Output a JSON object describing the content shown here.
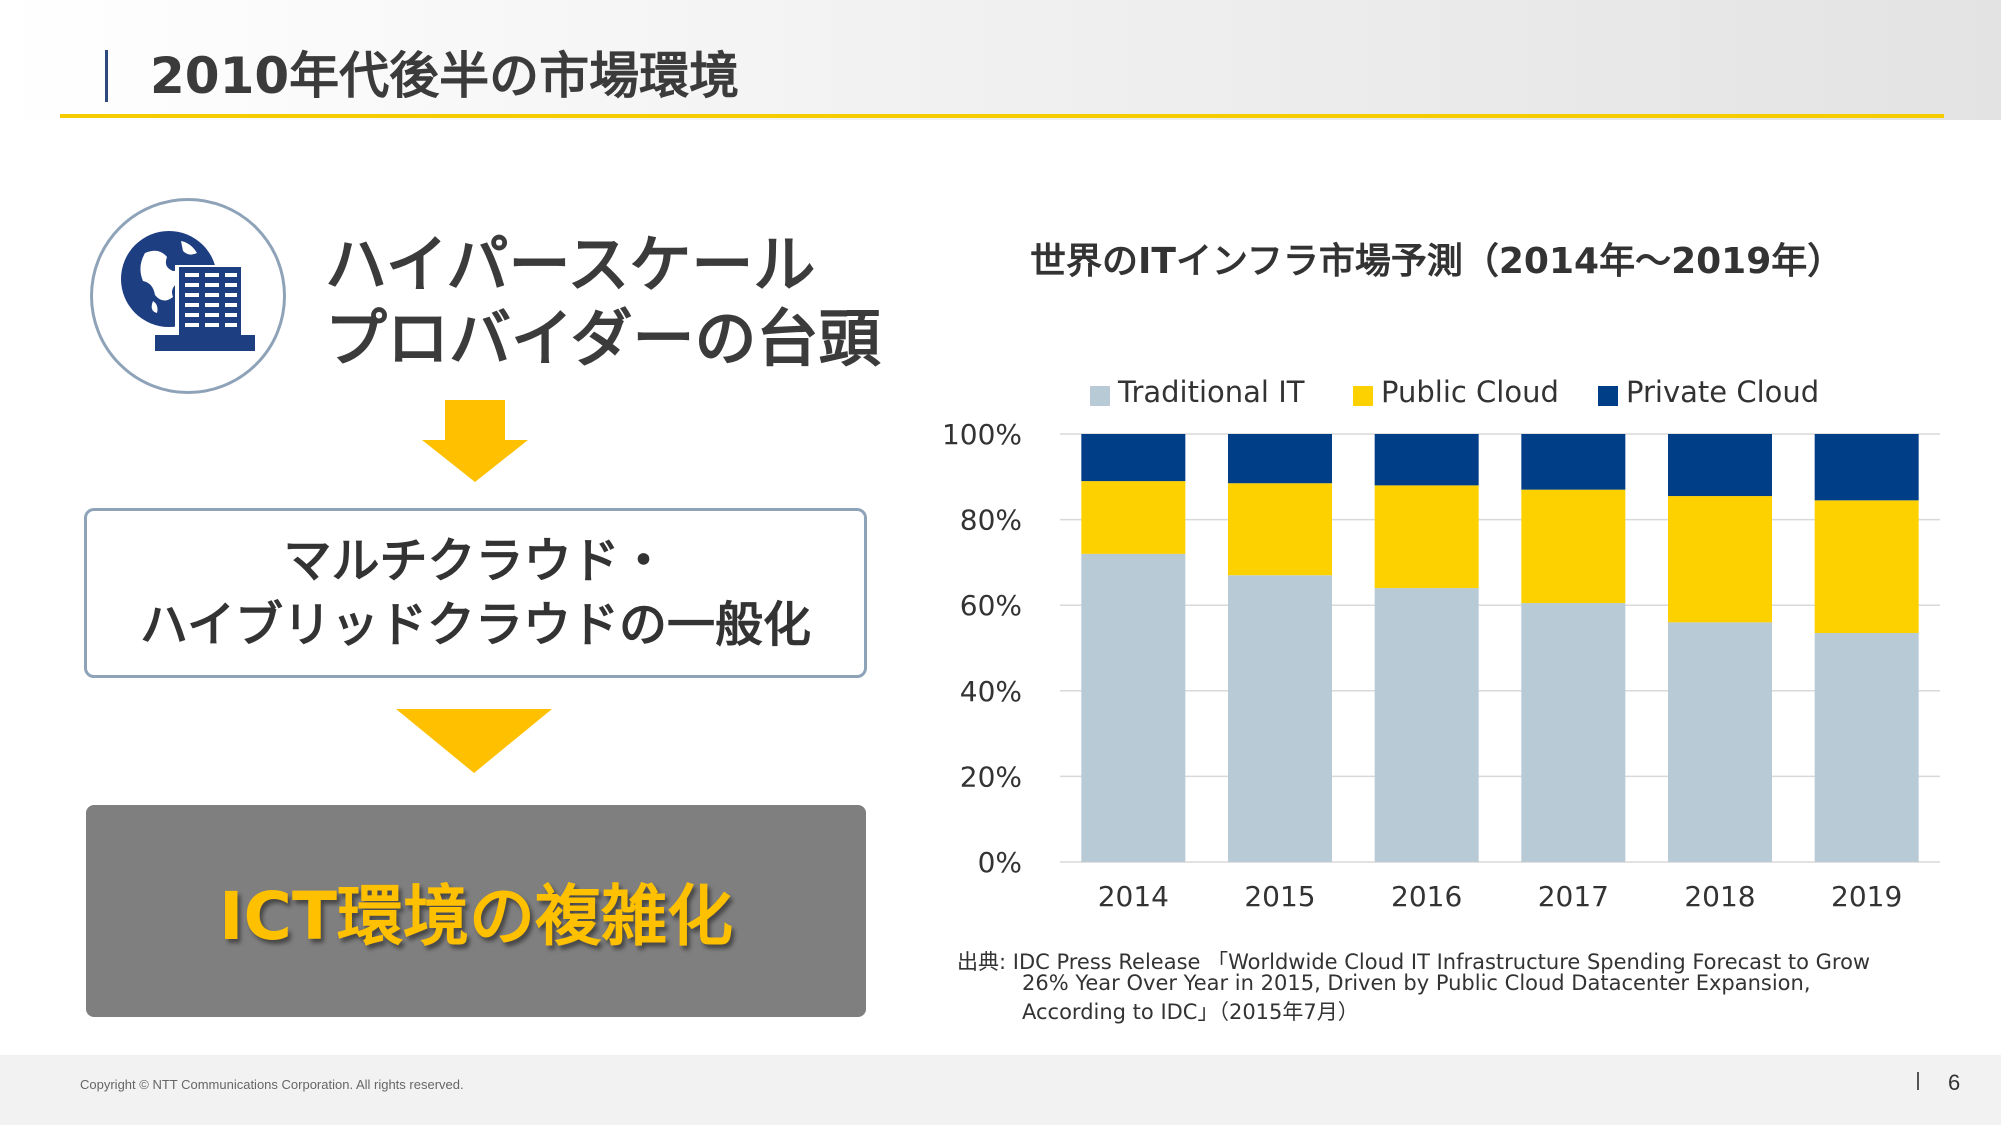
{
  "header": {
    "title": "2010年代後半の市場環境"
  },
  "left": {
    "headline_line1": "ハイパースケール",
    "headline_line2": "プロバイダーの台頭",
    "middle_line1": "マルチクラウド・",
    "middle_line2": "ハイブリッドクラウドの一般化",
    "conclusion": "ICT環境の複雑化",
    "icon": "globe-building-icon"
  },
  "chart_data": {
    "type": "bar",
    "stacked": true,
    "title": "世界のITインフラ市場予測（2014年～2019年）",
    "categories": [
      "2014",
      "2015",
      "2016",
      "2017",
      "2018",
      "2019"
    ],
    "series": [
      {
        "name": "Traditional IT",
        "color": "#b8cad6",
        "values": [
          72,
          67,
          64,
          60.5,
          56,
          53.5
        ]
      },
      {
        "name": "Public Cloud",
        "color": "#fdd000",
        "values": [
          17,
          21.5,
          24,
          26.5,
          29.5,
          31
        ]
      },
      {
        "name": "Private Cloud",
        "color": "#003f87",
        "values": [
          11,
          11.5,
          12,
          13,
          14.5,
          15.5
        ]
      }
    ],
    "y_ticks": [
      "0%",
      "20%",
      "40%",
      "60%",
      "80%",
      "100%"
    ],
    "ylim": [
      0,
      100
    ],
    "legend_position": "top",
    "gridlines": true
  },
  "source": {
    "line1": "出典: IDC Press Release 「Worldwide Cloud IT Infrastructure Spending Forecast to Grow",
    "line2": "26% Year Over Year in 2015, Driven by Public Cloud Datacenter Expansion,",
    "line3": "According to IDC」（2015年7月）"
  },
  "footer": {
    "copyright": "Copyright © NTT Communications Corporation. All rights reserved.",
    "page_number": "6"
  },
  "colors": {
    "accent": "#f5cc00",
    "arrow": "#ffc000",
    "dark_box": "#7f7f7f",
    "navy": "#1e3e82"
  }
}
